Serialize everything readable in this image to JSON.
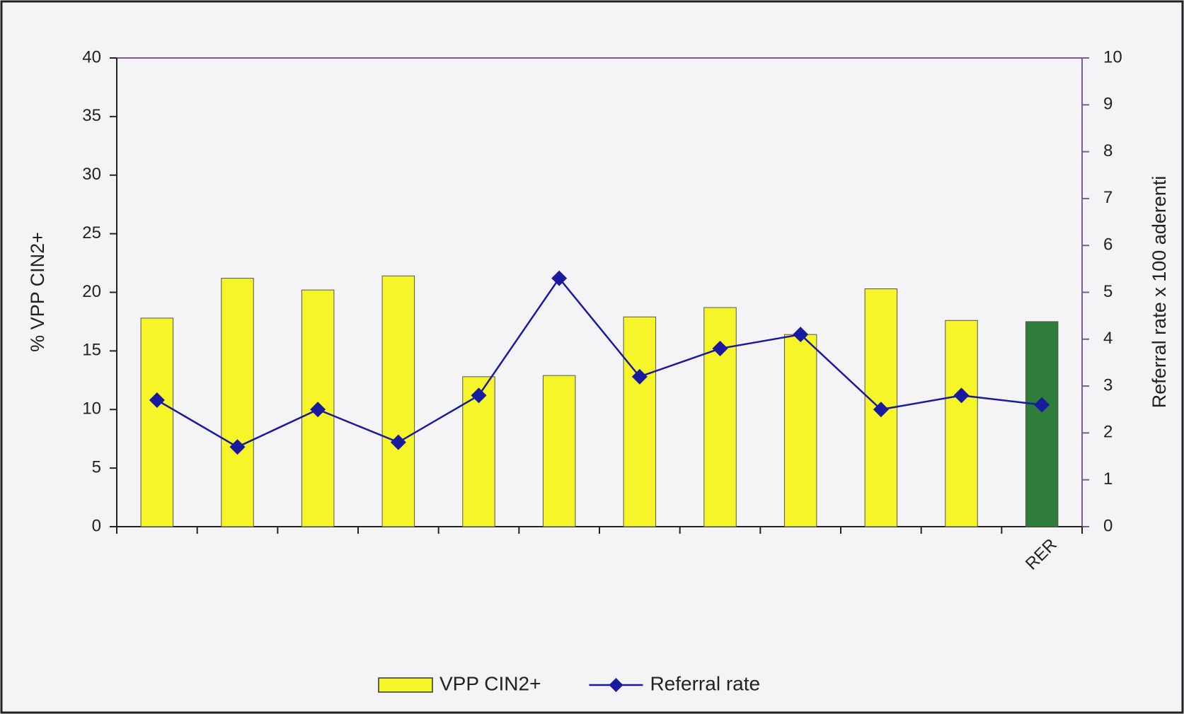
{
  "chart_data": {
    "type": "bar",
    "categories": [
      null,
      null,
      null,
      null,
      null,
      null,
      null,
      null,
      null,
      null,
      null,
      "RER"
    ],
    "series": [
      {
        "name": "VPP CIN2+",
        "type": "bar",
        "color": "#f5f52a",
        "colors": [
          "#f5f52a",
          "#f5f52a",
          "#f5f52a",
          "#f5f52a",
          "#f5f52a",
          "#f5f52a",
          "#f5f52a",
          "#f5f52a",
          "#f5f52a",
          "#f5f52a",
          "#f5f52a",
          "#2e7d3a"
        ],
        "values": [
          17.8,
          21.2,
          20.2,
          21.4,
          12.8,
          12.9,
          17.9,
          18.7,
          16.4,
          20.3,
          17.6,
          17.5
        ]
      },
      {
        "name": "Referral rate",
        "type": "line",
        "axis": "y2",
        "color": "#1a1aa0",
        "values": [
          2.7,
          1.7,
          2.5,
          1.8,
          2.8,
          5.3,
          3.2,
          3.8,
          4.1,
          2.5,
          2.8,
          2.6
        ]
      }
    ],
    "ylabel": "% VPP CIN2+",
    "y2label": "Referral rate x 100 aderenti",
    "ylim": [
      0,
      40
    ],
    "yticks": [
      0,
      5,
      10,
      15,
      20,
      25,
      30,
      35,
      40
    ],
    "y2lim": [
      0,
      10
    ],
    "y2ticks": [
      0,
      1,
      2,
      3,
      4,
      5,
      6,
      7,
      8,
      9,
      10
    ],
    "grid": false,
    "legend": "bottom"
  }
}
